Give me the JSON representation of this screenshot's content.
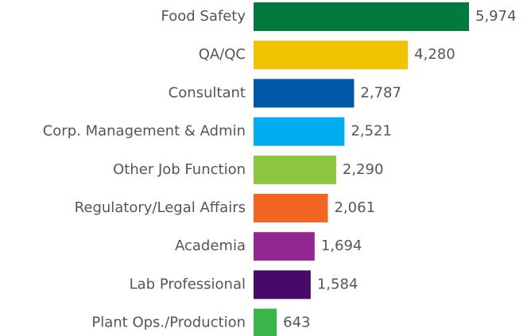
{
  "chart_data": {
    "type": "bar",
    "orientation": "horizontal",
    "categories": [
      "Food Safety",
      "QA/QC",
      "Consultant",
      "Corp. Management & Admin",
      "Other Job Function",
      "Regulatory/Legal Affairs",
      "Academia",
      "Lab Professional",
      "Plant Ops./Production"
    ],
    "values": [
      5974,
      4280,
      2787,
      2521,
      2290,
      2061,
      1694,
      1584,
      643
    ],
    "value_labels": [
      "5,974",
      "4,280",
      "2,787",
      "2,521",
      "2,290",
      "2,061",
      "1,694",
      "1,584",
      "643"
    ],
    "colors": [
      "#007a3d",
      "#f0c400",
      "#0057a8",
      "#00aeef",
      "#8dc63f",
      "#f26522",
      "#92278f",
      "#470a68",
      "#39b54a"
    ]
  }
}
